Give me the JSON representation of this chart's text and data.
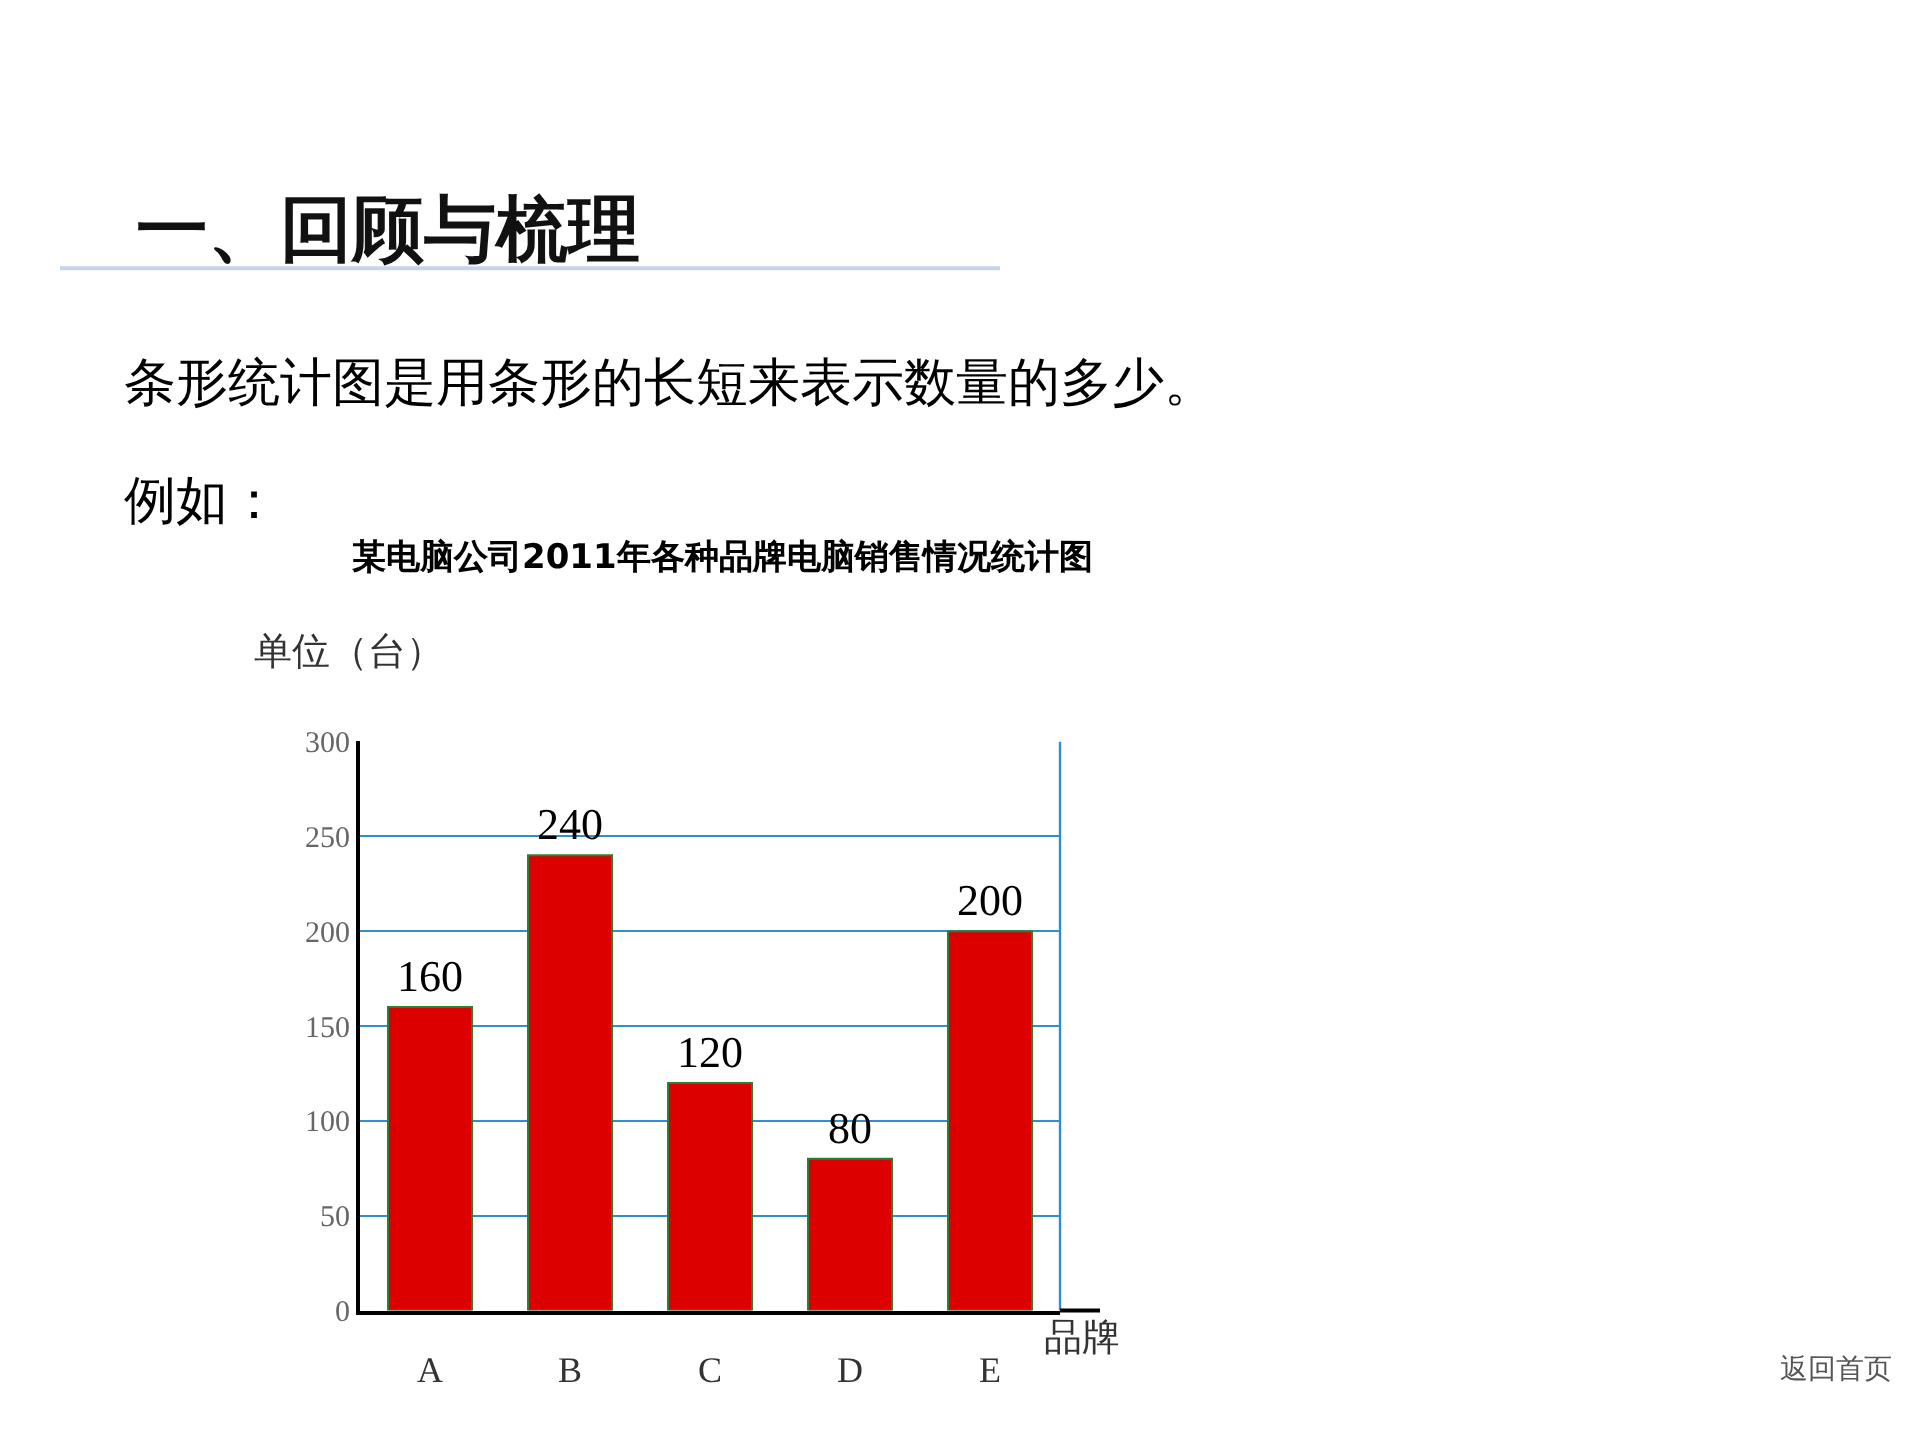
{
  "chart_data": {
    "type": "bar",
    "title": "某电脑公司2011年各种品牌电脑销售情况统计图",
    "ylabel": "单位（台）",
    "xlabel": "品牌",
    "categories": [
      "A",
      "B",
      "C",
      "D",
      "E"
    ],
    "values": [
      160,
      240,
      120,
      80,
      200
    ],
    "color": "#dd0000",
    "ylim": [
      0,
      300
    ],
    "yticks": [
      0,
      50,
      100,
      150,
      200,
      250,
      300
    ],
    "grid": "y",
    "legend": false,
    "data_labels": true,
    "annotations": [
      "一、回顾与梳理",
      "条形统计图是用条形的长短来表示数量的多少。",
      "例如：",
      "返回首页"
    ]
  }
}
